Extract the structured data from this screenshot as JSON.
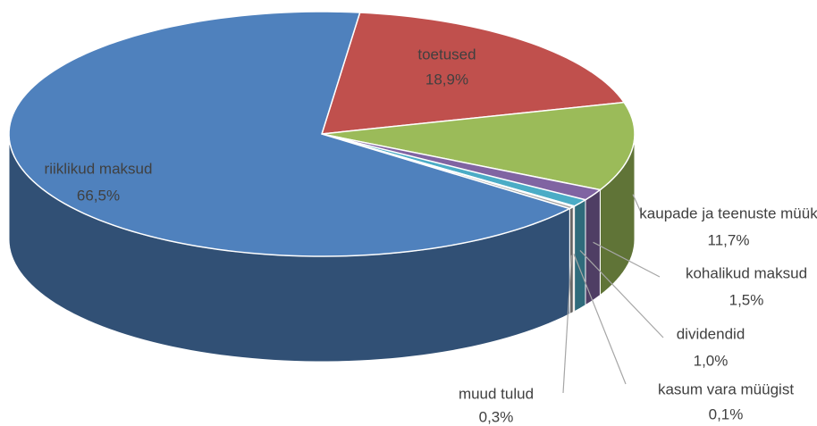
{
  "chart_data": {
    "type": "pie",
    "categories": [
      "toetused",
      "kaupade ja teenuste müük",
      "kohalikud maksud",
      "dividendid",
      "kasum vara müügist",
      "muud tulud",
      "riiklikud maksud"
    ],
    "values": [
      18.9,
      11.7,
      1.5,
      1.0,
      0.1,
      0.3,
      66.5
    ],
    "value_labels": [
      "18,9%",
      "11,7%",
      "1,5%",
      "1,0%",
      "0,1%",
      "0,3%",
      "66,5%"
    ],
    "colors": [
      "#c0504d",
      "#9bbb59",
      "#8064a2",
      "#4bacc6",
      "#f79646",
      "#a5a5a5",
      "#4f81bd"
    ]
  }
}
